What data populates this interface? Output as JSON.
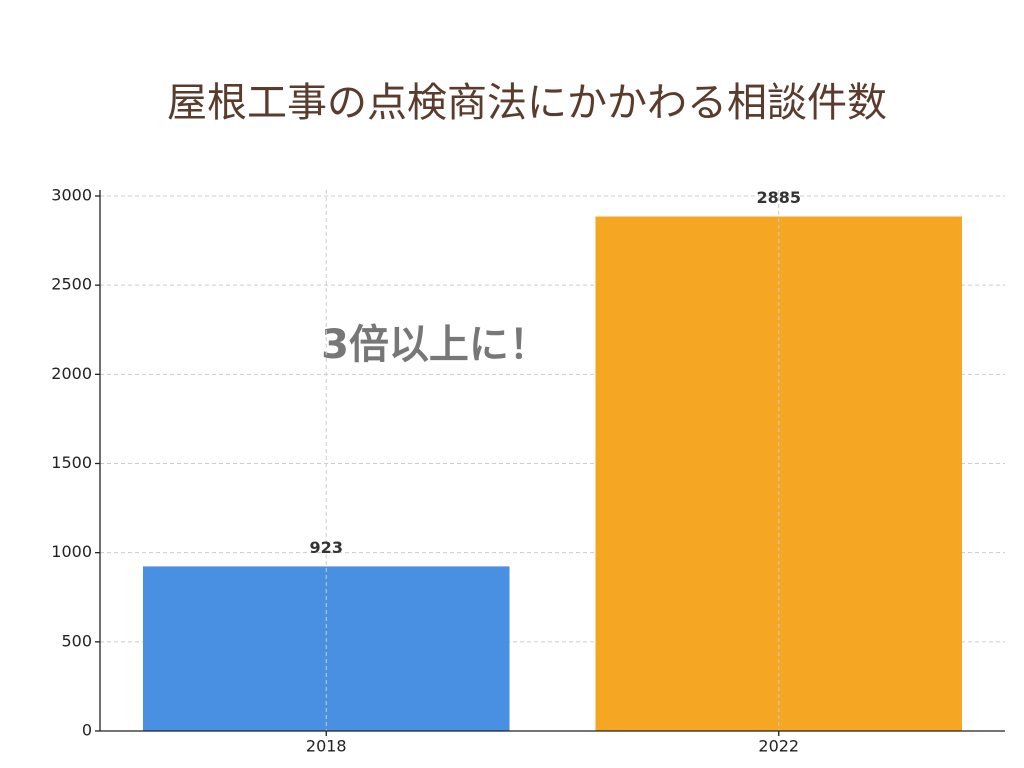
{
  "chart_data": {
    "type": "bar",
    "title": "屋根工事の点検商法にかかわる相談件数",
    "annotation": "3倍以上に！",
    "categories": [
      "2018",
      "2022"
    ],
    "values": [
      923,
      2885
    ],
    "colors": [
      "#4a90e2",
      "#f5a623"
    ],
    "ylim": [
      0,
      3000
    ],
    "yticks": [
      0,
      500,
      1000,
      1500,
      2000,
      2500,
      3000
    ],
    "grid": true
  }
}
